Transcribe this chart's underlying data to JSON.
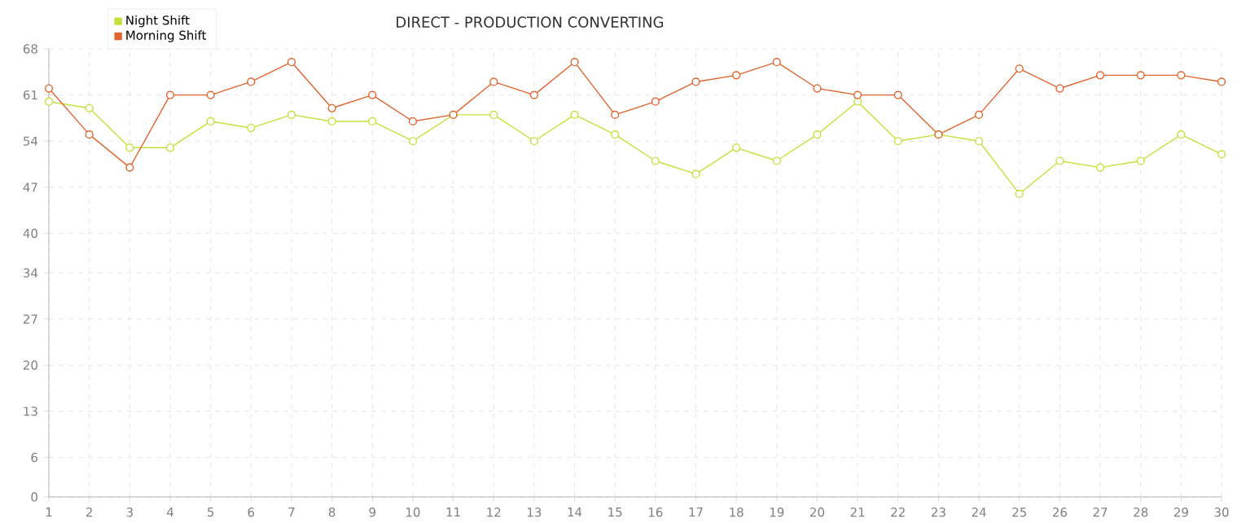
{
  "chart_data": {
    "type": "line",
    "title": "DIRECT - PRODUCTION CONVERTING",
    "x": [
      1,
      2,
      3,
      4,
      5,
      6,
      7,
      8,
      9,
      10,
      11,
      12,
      13,
      14,
      15,
      16,
      17,
      18,
      19,
      20,
      21,
      22,
      23,
      24,
      25,
      26,
      27,
      28,
      29,
      30
    ],
    "series": [
      {
        "name": "Night Shift",
        "color": "#c5e03a",
        "values": [
          60,
          59,
          53,
          53,
          57,
          56,
          58,
          57,
          57,
          54,
          58,
          58,
          54,
          58,
          55,
          51,
          49,
          53,
          51,
          55,
          60,
          54,
          55,
          54,
          46,
          51,
          50,
          51,
          55,
          52
        ]
      },
      {
        "name": "Morning Shift",
        "color": "#e0652f",
        "values": [
          62,
          55,
          50,
          61,
          61,
          63,
          66,
          59,
          61,
          57,
          58,
          63,
          61,
          66,
          58,
          60,
          63,
          64,
          66,
          62,
          61,
          61,
          55,
          58,
          65,
          62,
          64,
          64,
          64,
          63
        ]
      }
    ],
    "xlim": [
      1,
      30
    ],
    "xticks": [
      1,
      2,
      3,
      4,
      5,
      6,
      7,
      8,
      9,
      10,
      11,
      12,
      13,
      14,
      15,
      16,
      17,
      18,
      19,
      20,
      21,
      22,
      23,
      24,
      25,
      26,
      27,
      28,
      29,
      30
    ],
    "ylim": [
      0,
      68
    ],
    "yticks": [
      0,
      6,
      13,
      20,
      27,
      34,
      40,
      47,
      54,
      61,
      68
    ],
    "grid": true,
    "legend": "top left",
    "marker": "circle",
    "line_style": "solid"
  }
}
